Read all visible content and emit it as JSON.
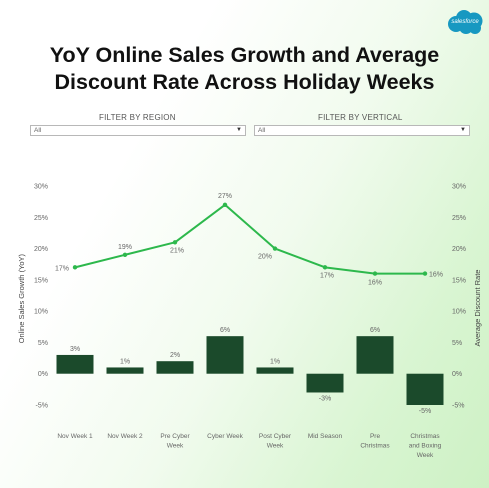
{
  "brand": {
    "logo_text": "salesforce",
    "logo_color": "#1798c1"
  },
  "title_line1": "YoY Online Sales Growth and Average",
  "title_line2": "Discount Rate Across Holiday Weeks",
  "filters": [
    {
      "label": "FILTER BY REGION",
      "value": "All"
    },
    {
      "label": "FILTER BY VERTICAL",
      "value": "All"
    }
  ],
  "chart_data": {
    "type": "bar+line",
    "categories": [
      [
        "Nov Week 1"
      ],
      [
        "Nov Week 2"
      ],
      [
        "Pre Cyber",
        "Week"
      ],
      [
        "Cyber Week"
      ],
      [
        "Post Cyber",
        "Week"
      ],
      [
        "Mid Season"
      ],
      [
        "Pre",
        "Christmas"
      ],
      [
        "Christmas",
        "and Boxing",
        "Week"
      ]
    ],
    "series": [
      {
        "name": "Online Sales Growth (YoY)",
        "type": "bar",
        "axis": "left",
        "values": [
          3,
          1,
          2,
          6,
          1,
          -3,
          6,
          -5
        ],
        "labels": [
          "3%",
          "1%",
          "2%",
          "6%",
          "1%",
          "-3%",
          "6%",
          "-5%"
        ],
        "color": "#1b4a2b"
      },
      {
        "name": "Average Discount Rate",
        "type": "line",
        "axis": "right",
        "values": [
          17,
          19,
          21,
          27,
          20,
          17,
          16,
          16
        ],
        "labels": [
          "17%",
          "19%",
          "21%",
          "27%",
          "20%",
          "17%",
          "16%",
          "16%"
        ],
        "color": "#2db84c"
      }
    ],
    "y_ticks": [
      "30%",
      "25%",
      "20%",
      "15%",
      "10%",
      "5%",
      "0%",
      "-5%"
    ],
    "ylim": [
      -5,
      30
    ],
    "ylabel_left": "Online Sales Growth (YoY)",
    "ylabel_right": "Average Discount Rate",
    "grid": false
  }
}
